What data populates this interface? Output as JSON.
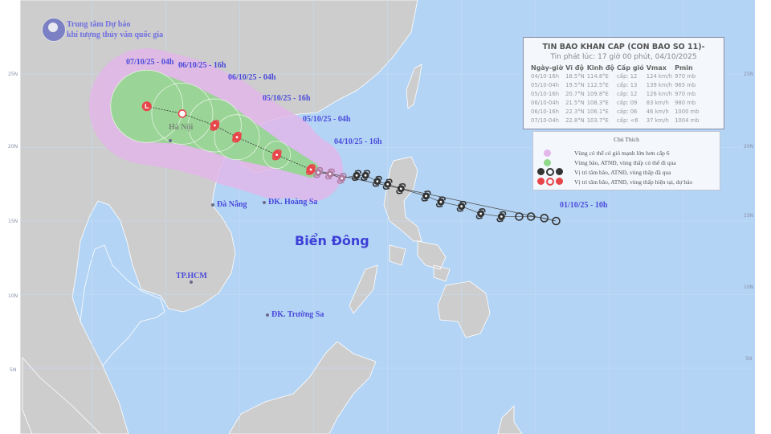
{
  "organization": {
    "line1": "Trung tâm Dự báo",
    "line2": "khí tượng thủy văn quốc gia"
  },
  "bulletin": {
    "title": "TIN BAO KHAN CAP (CON BAO SO 11)-",
    "issued": "Tin phát lúc: 17 giờ 00 phút, 04/10/2025",
    "columns": [
      "Ngày-giờ",
      "Vĩ độ",
      "Kinh độ",
      "Cấp gió",
      "Vmax",
      "Pmin"
    ],
    "rows": [
      [
        "04/10-16h",
        "18.5°N",
        "114.8°E",
        "cấp: 12",
        "124 km/h",
        "970 mb"
      ],
      [
        "05/10-04h",
        "19.5°N",
        "112.5°E",
        "cấp: 13",
        "139 km/h",
        "965 mb"
      ],
      [
        "05/10-16h",
        "20.7°N",
        "109.8°E",
        "cấp: 12",
        "126 km/h",
        "970 mb"
      ],
      [
        "06/10-04h",
        "21.5°N",
        "108.3°E",
        "cấp: 09",
        "83 km/h",
        "980 mb"
      ],
      [
        "06/10-16h",
        "22.3°N",
        "106.1°E",
        "cấp: 06",
        "46 km/h",
        "1000 mb"
      ],
      [
        "07/10-04h",
        "22.8°N",
        "103.7°E",
        "cấp: <6",
        "37 km/h",
        "1004 mb"
      ]
    ]
  },
  "legend": {
    "title": "Chú Thích",
    "items": [
      {
        "label": "Vùng có thể có gió mạnh lớn hơn cấp 6",
        "color": "#e3b6ea"
      },
      {
        "label": "Vùng bão, ATNĐ, vùng thấp có thể đi qua",
        "color": "#8fd98a"
      },
      {
        "label": "Vị trí tâm bão, ATNĐ, vùng thấp đã qua",
        "color": "#333333"
      },
      {
        "label": "Vị trí tâm bão, ATNĐ, vùng thấp hiện tại, dự báo",
        "color": "#e8454a"
      }
    ]
  },
  "track_labels": [
    "07/10/25 - 04h",
    "06/10/25 - 16h",
    "06/10/25 - 04h",
    "05/10/25 - 16h",
    "05/10/25 - 04h",
    "04/10/25 - 16h",
    "01/10/25 - 10h"
  ],
  "places": {
    "hanoi": "Hà Nội",
    "danang": "Đà Nẵng",
    "hoangsa": "ĐK. Hoàng Sa",
    "hcm": "TP.HCM",
    "truongsa": "ĐK. Trường Sa",
    "sea": "Biển Đông"
  },
  "lat_labels": [
    "25N",
    "20N",
    "15N",
    "10N",
    "5N"
  ],
  "forecast_track": [
    {
      "lat": 18.5,
      "lon": 114.8,
      "type": "storm"
    },
    {
      "lat": 19.5,
      "lon": 112.5,
      "type": "storm"
    },
    {
      "lat": 20.7,
      "lon": 109.8,
      "type": "storm"
    },
    {
      "lat": 21.5,
      "lon": 108.3,
      "type": "storm"
    },
    {
      "lat": 22.3,
      "lon": 106.1,
      "type": "depression"
    },
    {
      "lat": 22.8,
      "lon": 103.7,
      "type": "low"
    }
  ],
  "past_track": [
    {
      "lat": 18.3,
      "lon": 115.3,
      "type": "storm"
    },
    {
      "lat": 18.2,
      "lon": 116.1,
      "type": "storm"
    },
    {
      "lat": 17.9,
      "lon": 116.9,
      "type": "storm"
    },
    {
      "lat": 18.1,
      "lon": 117.9,
      "type": "storm"
    },
    {
      "lat": 18.1,
      "lon": 118.5,
      "type": "storm"
    },
    {
      "lat": 17.7,
      "lon": 119.3,
      "type": "storm"
    },
    {
      "lat": 17.5,
      "lon": 120.0,
      "type": "storm"
    },
    {
      "lat": 17.2,
      "lon": 120.9,
      "type": "storm"
    },
    {
      "lat": 16.7,
      "lon": 122.6,
      "type": "storm"
    },
    {
      "lat": 16.3,
      "lon": 123.6,
      "type": "storm"
    },
    {
      "lat": 16.0,
      "lon": 125.0,
      "type": "storm"
    },
    {
      "lat": 15.5,
      "lon": 126.3,
      "type": "storm"
    },
    {
      "lat": 15.3,
      "lon": 127.7,
      "type": "storm"
    },
    {
      "lat": 15.3,
      "lon": 128.9,
      "type": "depression"
    },
    {
      "lat": 15.3,
      "lon": 129.7,
      "type": "depression"
    },
    {
      "lat": 15.2,
      "lon": 130.6,
      "type": "depression"
    },
    {
      "lat": 15.0,
      "lon": 131.4,
      "type": "depression"
    }
  ],
  "colors": {
    "sea": "#b3d4f5",
    "land": "#cdcdcd",
    "pink_zone": "#e3b6ea",
    "green_zone": "#8fd98a",
    "current": "#e8454a",
    "past": "#333333",
    "label": "#4a4adb"
  }
}
